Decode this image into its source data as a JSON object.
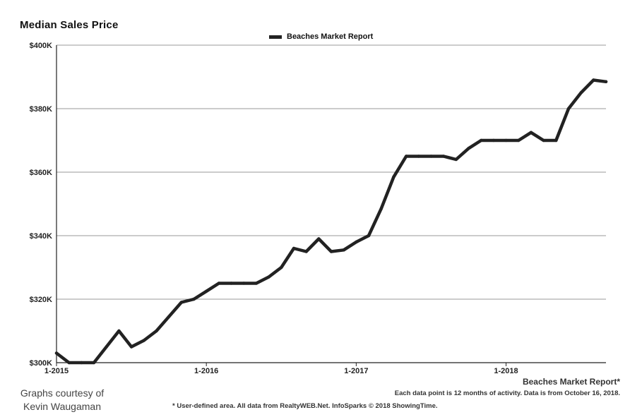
{
  "chart_data": {
    "type": "line",
    "title": "Median Sales Price",
    "legend": {
      "position": "top-center",
      "entries": [
        "Beaches Market Report"
      ]
    },
    "xlabel": "",
    "ylabel": "",
    "grid": true,
    "ylim": [
      300000,
      400000
    ],
    "yticks": [
      300000,
      320000,
      340000,
      360000,
      380000,
      400000
    ],
    "ytick_labels": [
      "$300K",
      "$320K",
      "$340K",
      "$360K",
      "$380K",
      "$400K"
    ],
    "xlim": [
      "2015-01",
      "2018-09"
    ],
    "xticks": [
      "2015-01",
      "2016-01",
      "2017-01",
      "2018-01"
    ],
    "xtick_labels": [
      "1-2015",
      "1-2016",
      "1-2017",
      "1-2018"
    ],
    "x": [
      "2015-01",
      "2015-02",
      "2015-03",
      "2015-04",
      "2015-05",
      "2015-06",
      "2015-07",
      "2015-08",
      "2015-09",
      "2015-10",
      "2015-11",
      "2015-12",
      "2016-01",
      "2016-02",
      "2016-03",
      "2016-04",
      "2016-05",
      "2016-06",
      "2016-07",
      "2016-08",
      "2016-09",
      "2016-10",
      "2016-11",
      "2016-12",
      "2017-01",
      "2017-02",
      "2017-03",
      "2017-04",
      "2017-05",
      "2017-06",
      "2017-07",
      "2017-08",
      "2017-09",
      "2017-10",
      "2017-11",
      "2017-12",
      "2018-01",
      "2018-02",
      "2018-03",
      "2018-04",
      "2018-05",
      "2018-06",
      "2018-07",
      "2018-08",
      "2018-09"
    ],
    "series": [
      {
        "name": "Beaches Market Report",
        "color": "#222222",
        "values": [
          303000,
          300000,
          300000,
          300000,
          305000,
          310000,
          305000,
          307000,
          310000,
          314500,
          319000,
          320000,
          322500,
          325000,
          325000,
          325000,
          325000,
          327000,
          330000,
          336000,
          335000,
          339000,
          335000,
          335500,
          338000,
          340000,
          348500,
          358500,
          365000,
          365000,
          365000,
          365000,
          364000,
          367500,
          370000,
          370000,
          370000,
          370000,
          372500,
          370000,
          370000,
          380000,
          385000,
          389000,
          388500
        ]
      }
    ]
  },
  "footer": {
    "source": "Beaches Market Report*",
    "note": "Each data point is 12 months of activity. Data is from October 16, 2018.",
    "disclaimer": "* User-defined area. All data from RealtyWEB.Net. InfoSparks © 2018 ShowingTime."
  },
  "credit": {
    "line1": "Graphs courtesy of",
    "line2": "Kevin Waugaman"
  }
}
